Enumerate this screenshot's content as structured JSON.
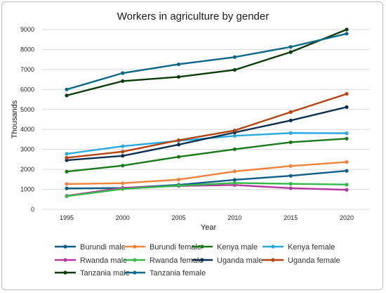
{
  "chart_data": {
    "type": "line",
    "title": "Workers in agriculture by gender",
    "xlabel": "Year",
    "ylabel": "Thousands",
    "x": [
      1995,
      2000,
      2005,
      2010,
      2015,
      2020
    ],
    "ylim": [
      0,
      9000
    ],
    "yticks": [
      0,
      1000,
      2000,
      3000,
      4000,
      5000,
      6000,
      7000,
      8000,
      9000
    ],
    "grid": true,
    "legend_position": "bottom",
    "series": [
      {
        "name": "Burundi male",
        "color": "#0e5e86",
        "values": [
          1050,
          1070,
          1230,
          1480,
          1680,
          1930
        ]
      },
      {
        "name": "Burundi female",
        "color": "#f0843c",
        "values": [
          1270,
          1310,
          1490,
          1900,
          2170,
          2370
        ]
      },
      {
        "name": "Kenya male",
        "color": "#197a1c",
        "values": [
          1890,
          2190,
          2630,
          3010,
          3360,
          3540
        ]
      },
      {
        "name": "Kenya female",
        "color": "#29a9df",
        "values": [
          2780,
          3160,
          3430,
          3680,
          3820,
          3810
        ]
      },
      {
        "name": "Rwanda male",
        "color": "#b5389e",
        "values": [
          680,
          1080,
          1170,
          1220,
          1060,
          980
        ]
      },
      {
        "name": "Rwanda female",
        "color": "#36b94a",
        "values": [
          660,
          1020,
          1190,
          1320,
          1280,
          1240
        ]
      },
      {
        "name": "Uganda male",
        "color": "#0b2f4f",
        "values": [
          2460,
          2680,
          3240,
          3850,
          4450,
          5120
        ]
      },
      {
        "name": "Uganda female",
        "color": "#b5420f",
        "values": [
          2580,
          2890,
          3460,
          3950,
          4870,
          5780
        ]
      },
      {
        "name": "Tanzania male",
        "color": "#0a3d0a",
        "values": [
          5700,
          6420,
          6630,
          6980,
          7870,
          9000
        ]
      },
      {
        "name": "Tanzania female",
        "color": "#0b6887",
        "values": [
          6000,
          6820,
          7260,
          7620,
          8130,
          8790
        ]
      }
    ]
  }
}
